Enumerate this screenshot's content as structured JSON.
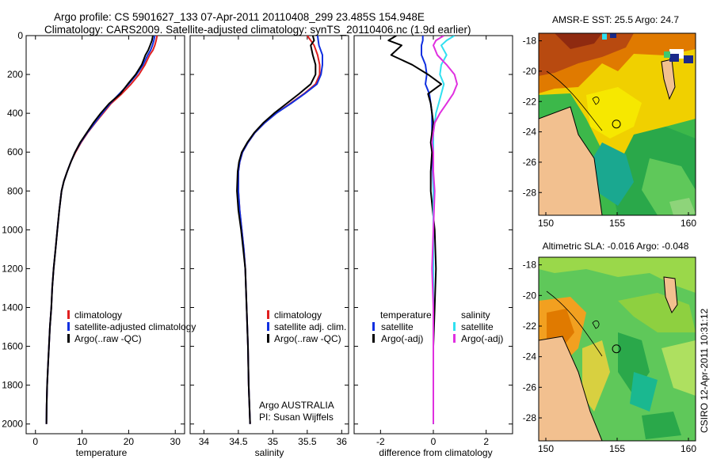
{
  "header": {
    "title_line1": "Argo profile: CS 5901627_133 07-Apr-2011 20110408_299 23.485S 154.948E",
    "title_line2": "Climatology: CARS2009. Satellite-adjusted climatology: synTS_20110406.nc (1.9d earlier)"
  },
  "colors": {
    "climatology": "#e02020",
    "satellite": "#1030e0",
    "argo": "#000000",
    "satellite_salinity": "#30e0f0",
    "argo_salinity": "#e030e0",
    "land": "#f2c08f"
  },
  "chart_data": [
    {
      "id": "temperature",
      "type": "line",
      "xlabel": "temperature",
      "ylabel": "",
      "xlim": [
        -2,
        32
      ],
      "ylim": [
        2050,
        0
      ],
      "xticks": [
        0,
        10,
        20,
        30
      ],
      "yticks": [
        0,
        200,
        400,
        600,
        800,
        1000,
        1200,
        1400,
        1600,
        1800,
        2000
      ],
      "legend": {
        "position": "lower-right",
        "entries": [
          {
            "label": "climatology",
            "color_key": "climatology"
          },
          {
            "label": "satellite-adjusted climatology",
            "color_key": "satellite"
          },
          {
            "label": "Argo(..raw -QC)",
            "color_key": "argo"
          }
        ]
      },
      "series": [
        {
          "name": "climatology",
          "color_key": "climatology",
          "x": [
            26.1,
            25.9,
            25.6,
            25.2,
            24.5,
            23.5,
            22.2,
            20.5,
            18.5,
            16.2,
            14.5,
            12.8,
            11.2,
            9.8,
            8.6,
            7.6,
            6.8,
            6.1,
            5.6,
            5.1,
            4.7,
            4.3,
            3.9,
            3.6,
            3.4,
            3.1,
            2.9,
            2.7,
            2.5,
            2.4,
            2.35
          ],
          "y": [
            0,
            25,
            50,
            75,
            100,
            150,
            200,
            250,
            300,
            350,
            400,
            450,
            500,
            550,
            600,
            650,
            700,
            750,
            800,
            900,
            1000,
            1100,
            1200,
            1300,
            1400,
            1500,
            1600,
            1700,
            1800,
            1900,
            2000
          ]
        },
        {
          "name": "satellite-adjusted climatology",
          "color_key": "satellite",
          "x": [
            25.6,
            25.4,
            25.1,
            24.7,
            24.1,
            23.1,
            21.7,
            20.0,
            18.0,
            16.0,
            14.3,
            12.7,
            11.1,
            9.7,
            8.5,
            7.6,
            6.8,
            6.1,
            5.6,
            5.1,
            4.7,
            4.3,
            3.9,
            3.6,
            3.4,
            3.1,
            2.9,
            2.7,
            2.5,
            2.4,
            2.35
          ],
          "y": [
            0,
            25,
            50,
            75,
            100,
            150,
            200,
            250,
            300,
            350,
            400,
            450,
            500,
            550,
            600,
            650,
            700,
            750,
            800,
            900,
            1000,
            1100,
            1200,
            1300,
            1400,
            1500,
            1600,
            1700,
            1800,
            1900,
            2000
          ]
        },
        {
          "name": "Argo(..raw -QC)",
          "color_key": "argo",
          "x": [
            25.2,
            25.0,
            24.6,
            24.2,
            23.6,
            22.8,
            21.5,
            19.8,
            18.2,
            15.8,
            14.0,
            12.4,
            11.0,
            9.6,
            8.5,
            7.6,
            6.8,
            6.1,
            5.6,
            5.1,
            4.7,
            4.3,
            3.9,
            3.6,
            3.4,
            3.1,
            2.9,
            2.7,
            2.5,
            2.4,
            2.35
          ],
          "y": [
            0,
            25,
            50,
            75,
            100,
            150,
            200,
            250,
            300,
            350,
            400,
            450,
            500,
            550,
            600,
            650,
            700,
            750,
            800,
            900,
            1000,
            1100,
            1200,
            1300,
            1400,
            1500,
            1600,
            1700,
            1800,
            1900,
            2000
          ]
        }
      ]
    },
    {
      "id": "salinity",
      "type": "line",
      "xlabel": "salinity",
      "xlim": [
        33.8,
        36.1
      ],
      "ylim": [
        2050,
        0
      ],
      "xticks": [
        34,
        34.5,
        35,
        35.5,
        36
      ],
      "legend": {
        "position": "lower-right",
        "entries": [
          {
            "label": "climatology",
            "color_key": "climatology"
          },
          {
            "label": "satellite adj. clim.",
            "color_key": "satellite"
          },
          {
            "label": "Argo(..raw -QC)",
            "color_key": "argo"
          }
        ]
      },
      "annotations": [
        "Argo AUSTRALIA",
        "PI: Susan Wijffels"
      ],
      "series": [
        {
          "name": "climatology",
          "color_key": "climatology",
          "x": [
            35.5,
            35.55,
            35.6,
            35.65,
            35.68,
            35.68,
            35.62,
            35.45,
            35.25,
            35.05,
            34.88,
            34.74,
            34.64,
            34.56,
            34.52,
            34.5,
            34.5,
            34.52,
            34.55,
            34.58,
            34.6,
            34.62,
            34.64,
            34.65,
            34.66,
            34.67
          ],
          "y": [
            0,
            25,
            50,
            100,
            150,
            200,
            250,
            300,
            350,
            400,
            450,
            500,
            550,
            600,
            650,
            700,
            800,
            900,
            1000,
            1100,
            1200,
            1400,
            1600,
            1800,
            1900,
            2000
          ]
        },
        {
          "name": "satellite adj. clim.",
          "color_key": "satellite",
          "x": [
            35.65,
            35.66,
            35.67,
            35.72,
            35.72,
            35.7,
            35.64,
            35.46,
            35.26,
            35.05,
            34.88,
            34.74,
            34.64,
            34.56,
            34.52,
            34.5,
            34.5,
            34.52,
            34.55,
            34.58,
            34.6,
            34.62,
            34.64,
            34.65,
            34.66,
            34.67
          ],
          "y": [
            0,
            25,
            50,
            100,
            150,
            200,
            250,
            300,
            350,
            400,
            450,
            500,
            550,
            600,
            650,
            700,
            800,
            900,
            1000,
            1100,
            1200,
            1400,
            1600,
            1800,
            1900,
            2000
          ]
        },
        {
          "name": "Argo(..raw -QC)",
          "color_key": "argo",
          "x": [
            35.58,
            35.6,
            35.55,
            35.58,
            35.62,
            35.62,
            35.55,
            35.38,
            35.2,
            35.02,
            34.86,
            34.73,
            34.63,
            34.55,
            34.51,
            34.49,
            34.48,
            34.5,
            34.54,
            34.57,
            34.6,
            34.62,
            34.64,
            34.65,
            34.66,
            34.67
          ],
          "y": [
            0,
            25,
            50,
            100,
            150,
            200,
            250,
            300,
            350,
            400,
            450,
            500,
            550,
            600,
            650,
            700,
            800,
            900,
            1000,
            1100,
            1200,
            1400,
            1600,
            1800,
            1900,
            2000
          ]
        }
      ]
    },
    {
      "id": "difference",
      "type": "line",
      "xlabel": "difference from climatology",
      "xlim": [
        -3,
        3
      ],
      "ylim": [
        2050,
        0
      ],
      "xticks": [
        -2,
        0,
        2
      ],
      "legend": {
        "position": "lower",
        "groups": [
          {
            "heading": "temperature",
            "entries": [
              {
                "label": "satellite",
                "color_key": "satellite"
              },
              {
                "label": "Argo(-adj)",
                "color_key": "argo"
              }
            ]
          },
          {
            "heading": "salinity",
            "entries": [
              {
                "label": "satellite",
                "color_key": "satellite_salinity"
              },
              {
                "label": "Argo(-adj)",
                "color_key": "argo_salinity"
              }
            ]
          }
        ]
      },
      "series": [
        {
          "name": "temperature satellite",
          "color_key": "satellite",
          "x": [
            -0.4,
            -0.4,
            -0.45,
            -0.45,
            -0.3,
            -0.25,
            -0.3,
            -0.15,
            -0.1,
            -0.05,
            -0.05,
            -0.05,
            -0.05,
            -0.03,
            -0.02,
            0,
            0,
            0,
            0,
            0,
            0,
            0
          ],
          "y": [
            0,
            25,
            50,
            100,
            150,
            200,
            250,
            300,
            350,
            400,
            450,
            500,
            550,
            600,
            700,
            800,
            1000,
            1200,
            1400,
            1600,
            1800,
            2000
          ]
        },
        {
          "name": "temperature Argo(-adj)",
          "color_key": "argo",
          "x": [
            -1.4,
            -1.7,
            -1.2,
            -1.6,
            -0.8,
            -0.2,
            0.3,
            -0.2,
            -0.1,
            -0.05,
            0.0,
            -0.05,
            -0.1,
            -0.05,
            -0.1,
            -0.1,
            0.05,
            0.1,
            0.05,
            0.0,
            0.0,
            0.0
          ],
          "y": [
            0,
            25,
            50,
            100,
            150,
            200,
            250,
            300,
            350,
            400,
            450,
            500,
            550,
            600,
            700,
            800,
            1000,
            1200,
            1400,
            1600,
            1800,
            2000
          ]
        },
        {
          "name": "salinity satellite",
          "color_key": "satellite_salinity",
          "x": [
            0.8,
            0.5,
            0.3,
            0.5,
            0.3,
            0.25,
            0.4,
            0.3,
            0.2,
            0.1,
            0.05,
            0.0,
            0.0,
            0.0,
            0.0,
            0.0,
            0.0,
            0.0,
            0.0,
            0.0,
            0.0,
            0.0
          ],
          "y": [
            0,
            25,
            50,
            100,
            150,
            200,
            250,
            300,
            350,
            400,
            450,
            500,
            550,
            600,
            700,
            800,
            1000,
            1200,
            1400,
            1600,
            1800,
            2000
          ]
        },
        {
          "name": "salinity Argo(-adj)",
          "color_key": "argo_salinity",
          "x": [
            0.4,
            0.1,
            0.0,
            0.15,
            0.5,
            0.8,
            0.9,
            0.75,
            0.5,
            0.25,
            0.05,
            0.0,
            -0.05,
            0.0,
            0.0,
            0.05,
            0.0,
            -0.05,
            0.0,
            0.0,
            0.0,
            0.0
          ],
          "y": [
            0,
            25,
            50,
            100,
            150,
            200,
            250,
            300,
            350,
            400,
            450,
            500,
            550,
            600,
            700,
            800,
            1000,
            1200,
            1400,
            1600,
            1800,
            2000
          ]
        }
      ]
    },
    {
      "id": "sst-map",
      "type": "heatmap",
      "title": "AMSR-E SST: 25.5 Argo: 24.7",
      "xticks": [
        150,
        155,
        160
      ],
      "yticks": [
        -18,
        -20,
        -22,
        -24,
        -26,
        -28
      ],
      "xlim": [
        149.5,
        160.5
      ],
      "ylim": [
        -29.5,
        -17.5
      ],
      "marker": {
        "lon": 154.948,
        "lat": -23.485
      }
    },
    {
      "id": "sla-map",
      "type": "heatmap",
      "title": "Altimetric SLA: -0.016 Argo: -0.048",
      "xticks": [
        150,
        155,
        160
      ],
      "yticks": [
        -18,
        -20,
        -22,
        -24,
        -26,
        -28
      ],
      "xlim": [
        149.5,
        160.5
      ],
      "ylim": [
        -29.5,
        -17.5
      ],
      "marker": {
        "lon": 154.948,
        "lat": -23.485
      }
    }
  ],
  "footer": {
    "stamp": "CSIRO 12-Apr-2011 10:31:12"
  }
}
